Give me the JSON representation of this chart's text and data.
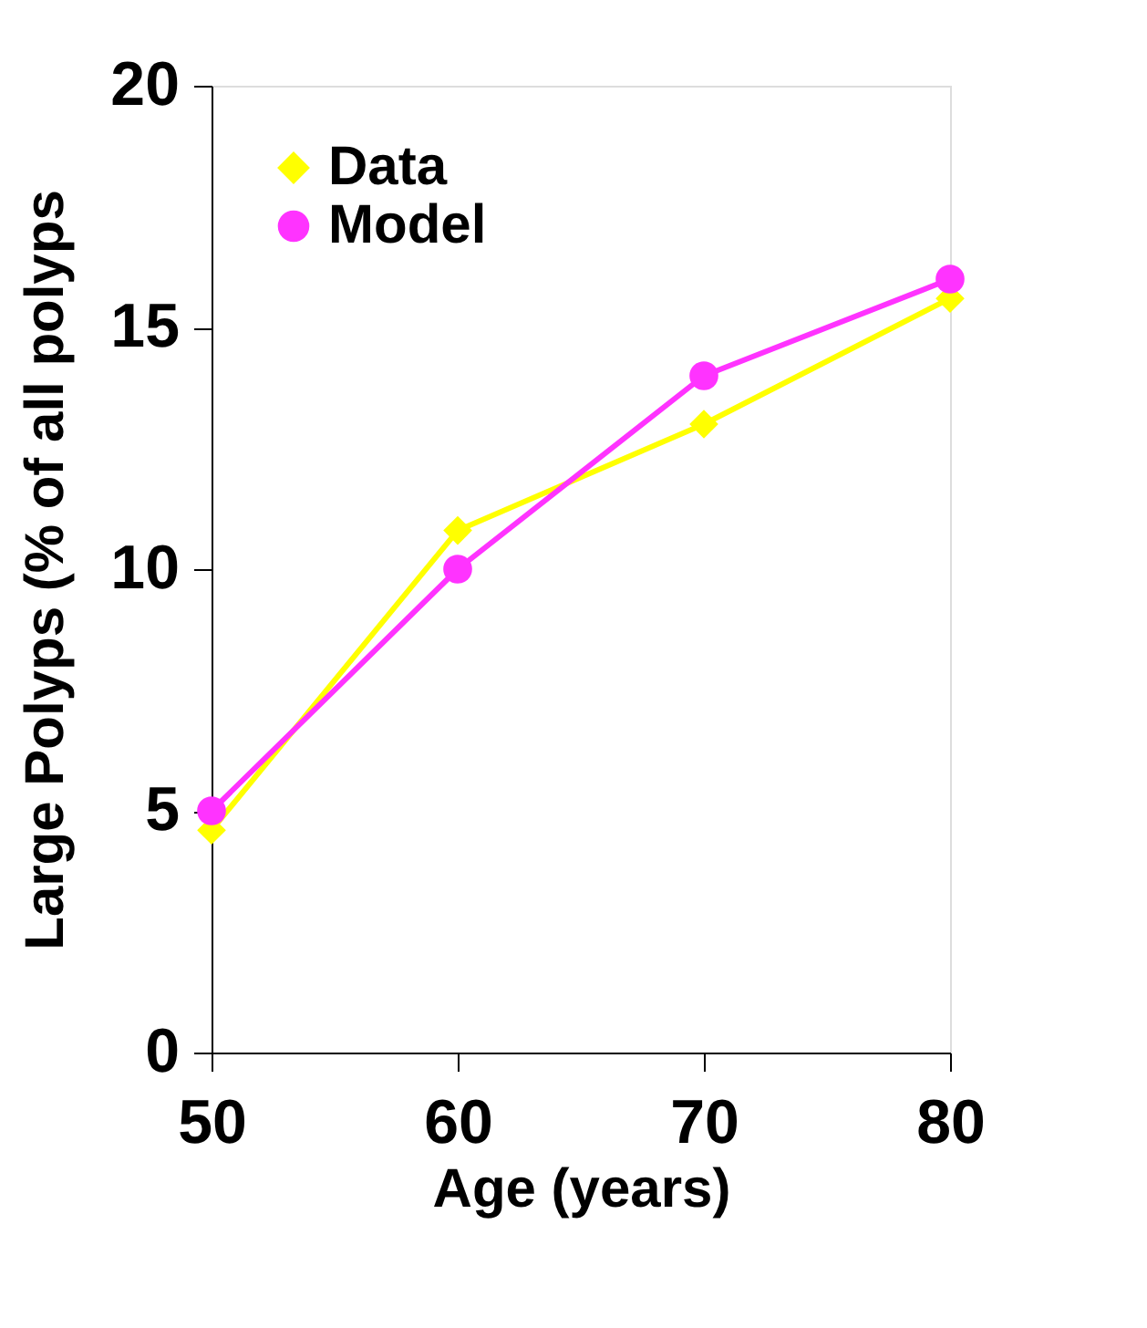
{
  "chart_data": {
    "type": "line",
    "xlabel": "Age (years)",
    "ylabel": "Large Polyps (% of all polyps",
    "x": [
      50,
      60,
      70,
      80
    ],
    "xlim": [
      50,
      80
    ],
    "xticks": [
      50,
      60,
      70,
      80
    ],
    "ylim": [
      0,
      20
    ],
    "yticks": [
      0,
      5,
      10,
      15,
      20
    ],
    "grid": false,
    "legend": "top left",
    "series": [
      {
        "name": "Data",
        "color": "#ffff00",
        "marker": "diamond",
        "values": [
          4.6,
          10.8,
          13.0,
          15.6
        ]
      },
      {
        "name": "Model",
        "color": "#ff33ff",
        "marker": "circle",
        "values": [
          5.0,
          10.0,
          14.0,
          16.0
        ]
      }
    ]
  }
}
